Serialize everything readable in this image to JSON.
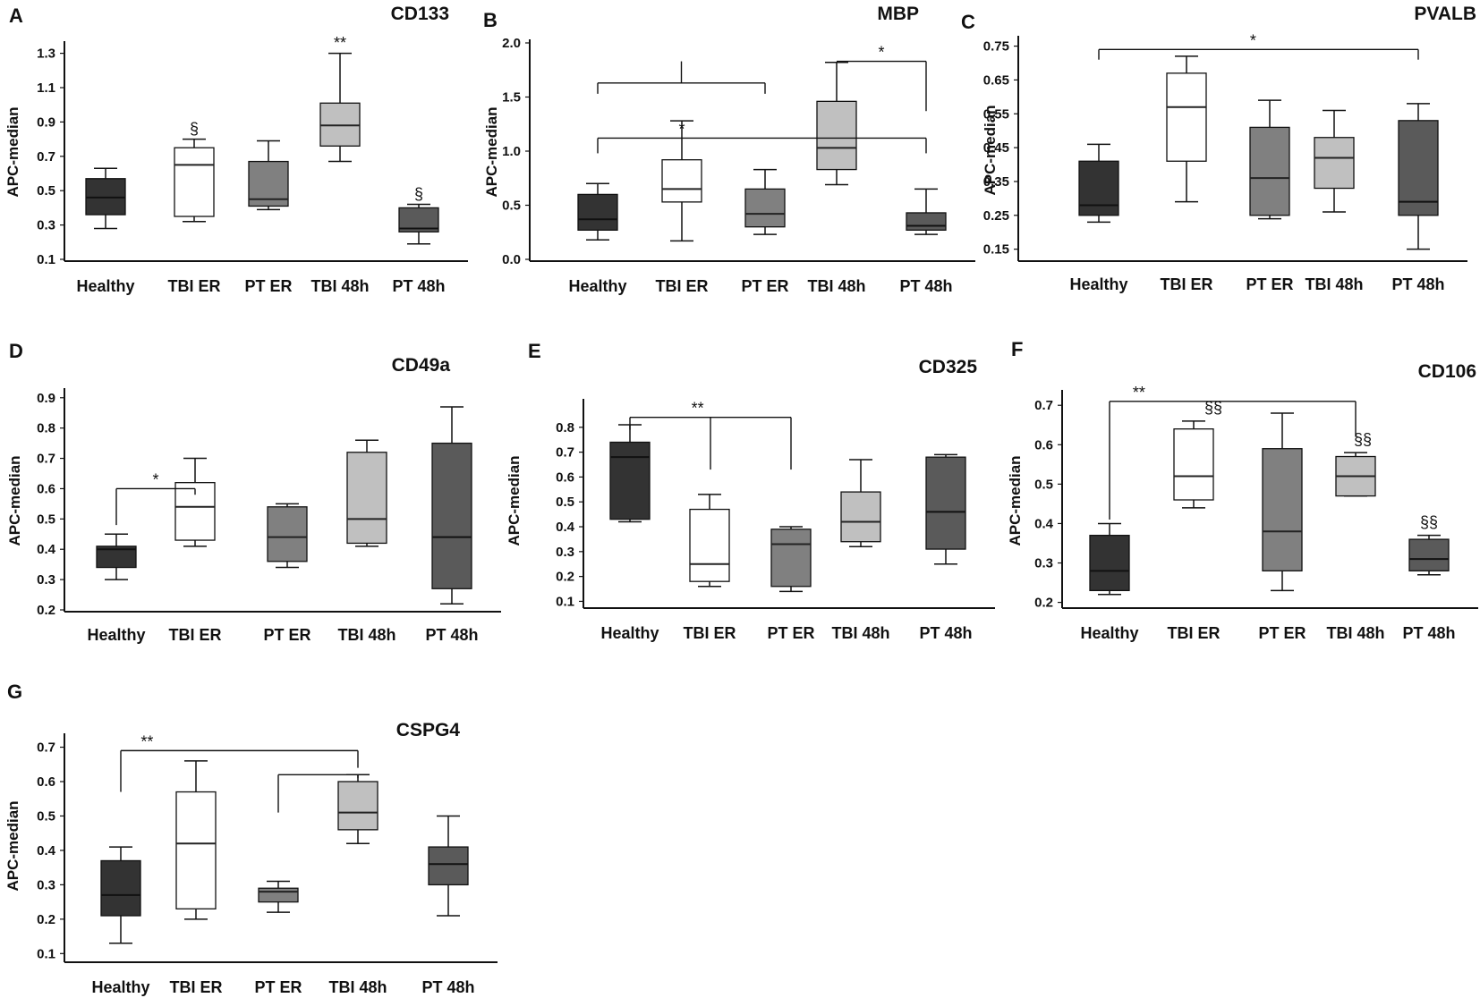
{
  "figure": {
    "box_colors": [
      "#333333",
      "#ffffff",
      "#808080",
      "#c0c0c0",
      "#5a5a5a"
    ],
    "categories": [
      "Healthy",
      "TBI ER",
      "PT ER",
      "TBI 48h",
      "PT 48h"
    ]
  },
  "chart_data": [
    {
      "type": "boxplot",
      "panel": "A",
      "title": "CD133",
      "ylabel": "APC-median",
      "categories": [
        "Healthy",
        "TBI ER",
        "PT ER",
        "TBI 48h",
        "PT 48h"
      ],
      "ylim": [
        0.1,
        1.35
      ],
      "yticks": [
        "1.3",
        "1.1",
        "0.9",
        "0.7",
        "0.5",
        "0.3",
        "0.1"
      ],
      "boxes": [
        {
          "min": 0.28,
          "q1": 0.36,
          "median": 0.46,
          "q3": 0.57,
          "max": 0.63
        },
        {
          "min": 0.32,
          "q1": 0.35,
          "median": 0.65,
          "q3": 0.75,
          "max": 0.8
        },
        {
          "min": 0.39,
          "q1": 0.41,
          "median": 0.45,
          "q3": 0.67,
          "max": 0.79
        },
        {
          "min": 0.67,
          "q1": 0.76,
          "median": 0.88,
          "q3": 1.01,
          "max": 1.3
        },
        {
          "min": 0.19,
          "q1": 0.26,
          "median": 0.28,
          "q3": 0.4,
          "max": 0.42
        }
      ],
      "annotations": [
        {
          "text": "§",
          "category": 1,
          "value": 0.83
        },
        {
          "text": "**",
          "category": 3,
          "value": 1.33
        },
        {
          "text": "§",
          "category": 4,
          "value": 0.45
        }
      ],
      "brackets": []
    },
    {
      "type": "boxplot",
      "panel": "B",
      "title": "MBP",
      "ylabel": "APC-median",
      "categories": [
        "Healthy",
        "TBI ER",
        "PT ER",
        "TBI 48h",
        "PT 48h"
      ],
      "ylim": [
        0.0,
        2.0
      ],
      "yticks": [
        "2.0",
        "1.5",
        "1.0",
        "0.5",
        "0.0"
      ],
      "boxes": [
        {
          "min": 0.18,
          "q1": 0.27,
          "median": 0.37,
          "q3": 0.6,
          "max": 0.7
        },
        {
          "min": 0.17,
          "q1": 0.53,
          "median": 0.65,
          "q3": 0.92,
          "max": 1.28
        },
        {
          "min": 0.23,
          "q1": 0.3,
          "median": 0.42,
          "q3": 0.65,
          "max": 0.83
        },
        {
          "min": 0.69,
          "q1": 0.83,
          "median": 1.03,
          "q3": 1.46,
          "max": 1.82
        },
        {
          "min": 0.23,
          "q1": 0.27,
          "median": 0.31,
          "q3": 0.43,
          "max": 0.65
        }
      ],
      "annotations": [],
      "brackets": [
        {
          "from": 0,
          "to": 2,
          "value": 1.63,
          "label": "",
          "from_end": 1.53,
          "to_end": 1.53,
          "stem": 1.83
        },
        {
          "from": 3,
          "to": 4,
          "value": 1.83,
          "label": "*",
          "from_end": 1.83,
          "to_end": 1.37
        },
        {
          "from": 0,
          "to": 4,
          "value": 1.12,
          "label": "*",
          "label_category": 1,
          "from_end": 0.98,
          "to_end": 0.98
        }
      ]
    },
    {
      "type": "boxplot",
      "panel": "C",
      "title": "PVALB",
      "ylabel": "APC-median",
      "categories": [
        "Healthy",
        "TBI ER",
        "PT ER",
        "TBI 48h",
        "PT 48h"
      ],
      "ylim": [
        0.12,
        0.77
      ],
      "yticks": [
        "0.75",
        "0.65",
        "0.55",
        "0.45",
        "0.35",
        "0.25",
        "0.15"
      ],
      "boxes": [
        {
          "min": 0.23,
          "q1": 0.25,
          "median": 0.28,
          "q3": 0.41,
          "max": 0.46
        },
        {
          "min": 0.29,
          "q1": 0.41,
          "median": 0.57,
          "q3": 0.67,
          "max": 0.72
        },
        {
          "min": 0.24,
          "q1": 0.25,
          "median": 0.36,
          "q3": 0.51,
          "max": 0.59
        },
        {
          "min": 0.26,
          "q1": 0.33,
          "median": 0.42,
          "q3": 0.48,
          "max": 0.56
        },
        {
          "min": 0.15,
          "q1": 0.25,
          "median": 0.29,
          "q3": 0.53,
          "max": 0.58
        }
      ],
      "annotations": [],
      "brackets": [
        {
          "from": 0,
          "to": 4,
          "value": 0.74,
          "label": "*",
          "label_category": 1.8,
          "from_end": 0.71,
          "to_end": 0.71
        }
      ]
    },
    {
      "type": "boxplot",
      "panel": "D",
      "title": "CD49a",
      "ylabel": "APC-median",
      "categories": [
        "Healthy",
        "TBI ER",
        "PT ER",
        "TBI 48h",
        "PT 48h"
      ],
      "ylim": [
        0.2,
        0.92
      ],
      "yticks": [
        "0.9",
        "0.8",
        "0.7",
        "0.6",
        "0.5",
        "0.4",
        "0.3",
        "0.2"
      ],
      "boxes": [
        {
          "min": 0.3,
          "q1": 0.34,
          "median": 0.4,
          "q3": 0.41,
          "max": 0.45
        },
        {
          "min": 0.41,
          "q1": 0.43,
          "median": 0.54,
          "q3": 0.62,
          "max": 0.7
        },
        {
          "min": 0.34,
          "q1": 0.36,
          "median": 0.44,
          "q3": 0.54,
          "max": 0.55
        },
        {
          "min": 0.41,
          "q1": 0.42,
          "median": 0.5,
          "q3": 0.72,
          "max": 0.76
        },
        {
          "min": 0.22,
          "q1": 0.27,
          "median": 0.44,
          "q3": 0.75,
          "max": 0.87
        }
      ],
      "annotations": [],
      "brackets": [
        {
          "from": 0,
          "to": 1,
          "value": 0.6,
          "label": "*",
          "from_end": 0.48,
          "to_end": 0.58
        }
      ]
    },
    {
      "type": "boxplot",
      "panel": "E",
      "title": "CD325",
      "ylabel": "APC-median",
      "categories": [
        "Healthy",
        "TBI ER",
        "PT ER",
        "TBI 48h",
        "PT 48h"
      ],
      "ylim": [
        0.08,
        0.9
      ],
      "yticks": [
        "0.8",
        "0.7",
        "0.6",
        "0.5",
        "0.4",
        "0.3",
        "0.2",
        "0.1"
      ],
      "boxes": [
        {
          "min": 0.42,
          "q1": 0.43,
          "median": 0.68,
          "q3": 0.74,
          "max": 0.81
        },
        {
          "min": 0.16,
          "q1": 0.18,
          "median": 0.25,
          "q3": 0.47,
          "max": 0.53
        },
        {
          "min": 0.14,
          "q1": 0.16,
          "median": 0.33,
          "q3": 0.39,
          "max": 0.4
        },
        {
          "min": 0.32,
          "q1": 0.34,
          "median": 0.42,
          "q3": 0.54,
          "max": 0.67
        },
        {
          "min": 0.25,
          "q1": 0.31,
          "median": 0.46,
          "q3": 0.68,
          "max": 0.69
        }
      ],
      "annotations": [],
      "brackets": [
        {
          "from": 0,
          "to": 2,
          "value": 0.84,
          "label": "**",
          "label_category": 0.85,
          "from_end": 0.79,
          "to_end": 0.63,
          "stem": 0.63
        }
      ]
    },
    {
      "type": "boxplot",
      "panel": "F",
      "title": "CD106",
      "ylabel": "APC-median",
      "categories": [
        "Healthy",
        "TBI ER",
        "PT ER",
        "TBI 48h",
        "PT 48h"
      ],
      "ylim": [
        0.19,
        0.73
      ],
      "yticks": [
        "0.7",
        "0.6",
        "0.5",
        "0.4",
        "0.3",
        "0.2"
      ],
      "boxes": [
        {
          "min": 0.22,
          "q1": 0.23,
          "median": 0.28,
          "q3": 0.37,
          "max": 0.4
        },
        {
          "min": 0.44,
          "q1": 0.46,
          "median": 0.52,
          "q3": 0.64,
          "max": 0.66
        },
        {
          "min": 0.23,
          "q1": 0.28,
          "median": 0.38,
          "q3": 0.59,
          "max": 0.68
        },
        {
          "min": 0.47,
          "q1": 0.47,
          "median": 0.52,
          "q3": 0.57,
          "max": 0.58
        },
        {
          "min": 0.27,
          "q1": 0.28,
          "median": 0.31,
          "q3": 0.36,
          "max": 0.37
        }
      ],
      "annotations": [
        {
          "text": "§§",
          "category": 1,
          "value": 0.68,
          "dx": 22
        },
        {
          "text": "§§",
          "category": 3,
          "value": 0.6,
          "dx": 8
        },
        {
          "text": "§§",
          "category": 4,
          "value": 0.39,
          "dx": 0
        }
      ],
      "brackets": [
        {
          "from": 0,
          "to": 3,
          "value": 0.71,
          "label": "**",
          "label_category": 0.35,
          "from_end": 0.41,
          "to_end": 0.62
        }
      ]
    },
    {
      "type": "boxplot",
      "panel": "G",
      "title": "CSPG4",
      "ylabel": "APC-median",
      "categories": [
        "Healthy",
        "TBI ER",
        "PT ER",
        "TBI 48h",
        "PT 48h"
      ],
      "ylim": [
        0.08,
        0.73
      ],
      "yticks": [
        "0.7",
        "0.6",
        "0.5",
        "0.4",
        "0.3",
        "0.2",
        "0.1"
      ],
      "boxes": [
        {
          "min": 0.13,
          "q1": 0.21,
          "median": 0.27,
          "q3": 0.37,
          "max": 0.41
        },
        {
          "min": 0.2,
          "q1": 0.23,
          "median": 0.42,
          "q3": 0.57,
          "max": 0.66
        },
        {
          "min": 0.22,
          "q1": 0.25,
          "median": 0.28,
          "q3": 0.29,
          "max": 0.31
        },
        {
          "min": 0.42,
          "q1": 0.46,
          "median": 0.51,
          "q3": 0.6,
          "max": 0.62
        },
        {
          "min": 0.21,
          "q1": 0.3,
          "median": 0.36,
          "q3": 0.41,
          "max": 0.5
        }
      ],
      "annotations": [],
      "brackets": [
        {
          "from": 0,
          "to": 3,
          "value": 0.69,
          "label": "**",
          "label_category": 0.35,
          "from_end": 0.57,
          "to_end": 0.64
        },
        {
          "from": 2,
          "to": 3,
          "value": 0.62,
          "label": "",
          "from_end": 0.51,
          "to_end": 0.61
        }
      ]
    }
  ]
}
